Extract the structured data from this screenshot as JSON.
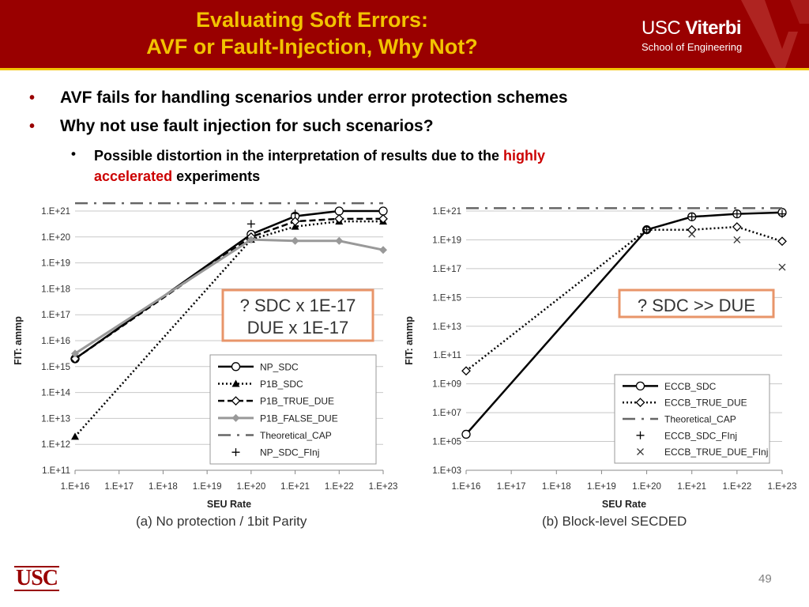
{
  "header": {
    "title_line1": "Evaluating Soft Errors:",
    "title_line2": "AVF or Fault-Injection, Why Not?",
    "logo_usc": "USC",
    "logo_viterbi": "Viterbi",
    "logo_school": "School of Engineering",
    "colors": {
      "background": "#990000",
      "title": "#f2c300"
    }
  },
  "bullets": [
    {
      "text": "AVF fails for handling scenarios under error protection schemes"
    },
    {
      "text": "Why not use fault injection for such scenarios?"
    }
  ],
  "sub_bullet": {
    "part1": "Possible distortion in the interpretation of results due to the ",
    "highlight1": "highly",
    "highlight2": "accelerated",
    "part2": " experiments"
  },
  "chart_data": [
    {
      "type": "line",
      "xlabel": "SEU Rate",
      "ylabel": "FIT: ammp",
      "caption": "(a) No protection / 1bit Parity",
      "y_scale": "log",
      "grid": true,
      "legend_position": "bottom-right",
      "x_ticks": [
        "1.E+16",
        "1.E+17",
        "1.E+18",
        "1.E+19",
        "1.E+20",
        "1.E+21",
        "1.E+22",
        "1.E+23"
      ],
      "y_ticks": [
        "1.E+11",
        "1.E+12",
        "1.E+13",
        "1.E+14",
        "1.E+15",
        "1.E+16",
        "1.E+17",
        "1.E+18",
        "1.E+19",
        "1.E+20",
        "1.E+21"
      ],
      "xlim_exp": [
        16,
        23
      ],
      "ylim_exp": [
        11,
        21
      ],
      "annotation": [
        "? SDC x 1E-17",
        "DUE x 1E-17"
      ],
      "series": [
        {
          "name": "NP_SDC",
          "style": "solid",
          "marker": "circle",
          "x_exp": [
            16,
            20,
            21,
            22,
            23
          ],
          "y_exp": [
            15.3,
            20.1,
            20.8,
            21.0,
            21.0
          ]
        },
        {
          "name": "P1B_SDC",
          "style": "dotted",
          "marker": "triangle",
          "x_exp": [
            16,
            20,
            21,
            22,
            23
          ],
          "y_exp": [
            12.3,
            19.9,
            20.4,
            20.6,
            20.6
          ]
        },
        {
          "name": "P1B_TRUE_DUE",
          "style": "dashed",
          "marker": "diamond",
          "x_exp": [
            16,
            20,
            21,
            22,
            23
          ],
          "y_exp": [
            15.3,
            20.0,
            20.6,
            20.7,
            20.7
          ]
        },
        {
          "name": "P1B_FALSE_DUE",
          "style": "gray",
          "marker": "diamond-filled",
          "x_exp": [
            16,
            20,
            21,
            22,
            23
          ],
          "y_exp": [
            15.5,
            19.9,
            19.85,
            19.85,
            19.5
          ]
        },
        {
          "name": "Theoretical_CAP",
          "style": "dashdot",
          "marker": "none",
          "x_exp": [
            16,
            23
          ],
          "y_exp": [
            21.3,
            21.3
          ]
        },
        {
          "name": "NP_SDC_FInj",
          "style": "none",
          "marker": "plus",
          "x_exp": [
            20,
            21
          ],
          "y_exp": [
            20.5,
            20.9
          ]
        }
      ]
    },
    {
      "type": "line",
      "xlabel": "SEU Rate",
      "ylabel": "FIT: ammp",
      "caption": "(b) Block-level SECDED",
      "y_scale": "log",
      "grid": true,
      "legend_position": "bottom-right",
      "x_ticks": [
        "1.E+16",
        "1.E+17",
        "1.E+18",
        "1.E+19",
        "1.E+20",
        "1.E+21",
        "1.E+22",
        "1.E+23"
      ],
      "y_ticks": [
        "1.E+03",
        "1.E+05",
        "1.E+07",
        "1.E+09",
        "1.E+11",
        "1.E+13",
        "1.E+15",
        "1.E+17",
        "1.E+19",
        "1.E+21"
      ],
      "xlim_exp": [
        16,
        23
      ],
      "ylim_exp": [
        3,
        21
      ],
      "annotation": [
        "? SDC >> DUE"
      ],
      "series": [
        {
          "name": "ECCB_SDC",
          "style": "solid",
          "marker": "circle",
          "x_exp": [
            16,
            20,
            21,
            22,
            23
          ],
          "y_exp": [
            5.5,
            19.7,
            20.6,
            20.8,
            20.9
          ]
        },
        {
          "name": "ECCB_TRUE_DUE",
          "style": "dotted",
          "marker": "diamond",
          "x_exp": [
            16,
            20,
            21,
            22,
            23
          ],
          "y_exp": [
            9.9,
            19.7,
            19.7,
            19.9,
            18.9
          ]
        },
        {
          "name": "Theoretical_CAP",
          "style": "dashdot",
          "marker": "none",
          "x_exp": [
            16,
            23
          ],
          "y_exp": [
            21.2,
            21.2
          ]
        },
        {
          "name": "ECCB_SDC_FInj",
          "style": "none",
          "marker": "plus",
          "x_exp": [
            20,
            21,
            22,
            23
          ],
          "y_exp": [
            19.7,
            20.6,
            20.8,
            20.8
          ]
        },
        {
          "name": "ECCB_TRUE_DUE_FInj",
          "style": "none",
          "marker": "x",
          "x_exp": [
            21,
            22,
            23
          ],
          "y_exp": [
            19.4,
            19.0,
            17.1
          ]
        }
      ]
    }
  ],
  "footer": {
    "page_number": "49",
    "logo": "USC"
  }
}
